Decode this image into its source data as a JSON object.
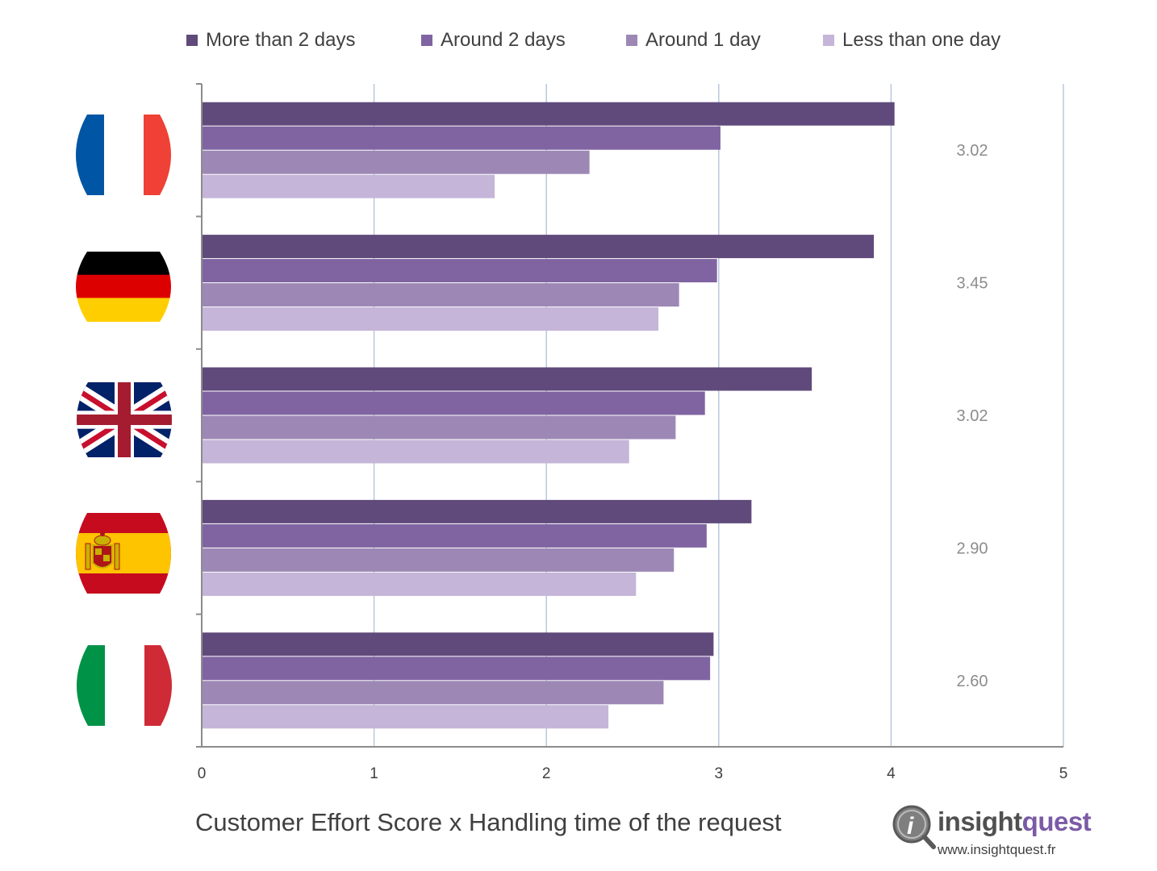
{
  "chart_data": {
    "type": "bar",
    "orientation": "horizontal",
    "categories": [
      "France",
      "Germany",
      "United Kingdom",
      "Spain",
      "Italy"
    ],
    "category_flags": [
      "france-flag",
      "germany-flag",
      "uk-flag",
      "spain-flag",
      "italy-flag"
    ],
    "series": [
      {
        "name": "More than 2 days",
        "color": "#604a7b",
        "values": [
          4.02,
          3.9,
          3.54,
          3.19,
          2.97
        ]
      },
      {
        "name": "Around 2 days",
        "color": "#8064a2",
        "values": [
          3.01,
          2.99,
          2.92,
          2.93,
          2.95
        ]
      },
      {
        "name": "Around 1 day",
        "color": "#9d88b5",
        "values": [
          2.25,
          2.77,
          2.75,
          2.74,
          2.68
        ]
      },
      {
        "name": "Less than one day",
        "color": "#c5b5d8",
        "values": [
          1.7,
          2.65,
          2.48,
          2.52,
          2.36
        ]
      }
    ],
    "average_labels": [
      "3.02",
      "3.45",
      "3.02",
      "2.90",
      "2.60"
    ],
    "xlim": [
      0,
      5
    ],
    "xticks": [
      "0",
      "1",
      "2",
      "3",
      "4",
      "5"
    ],
    "grid": true,
    "legend_position": "top",
    "title": "Customer Effort Score x Handling time of the request"
  },
  "brand": {
    "name_part1": "insight",
    "name_part2": "quest",
    "url": "www.insightquest.fr",
    "icon": "info-magnifier-icon"
  }
}
